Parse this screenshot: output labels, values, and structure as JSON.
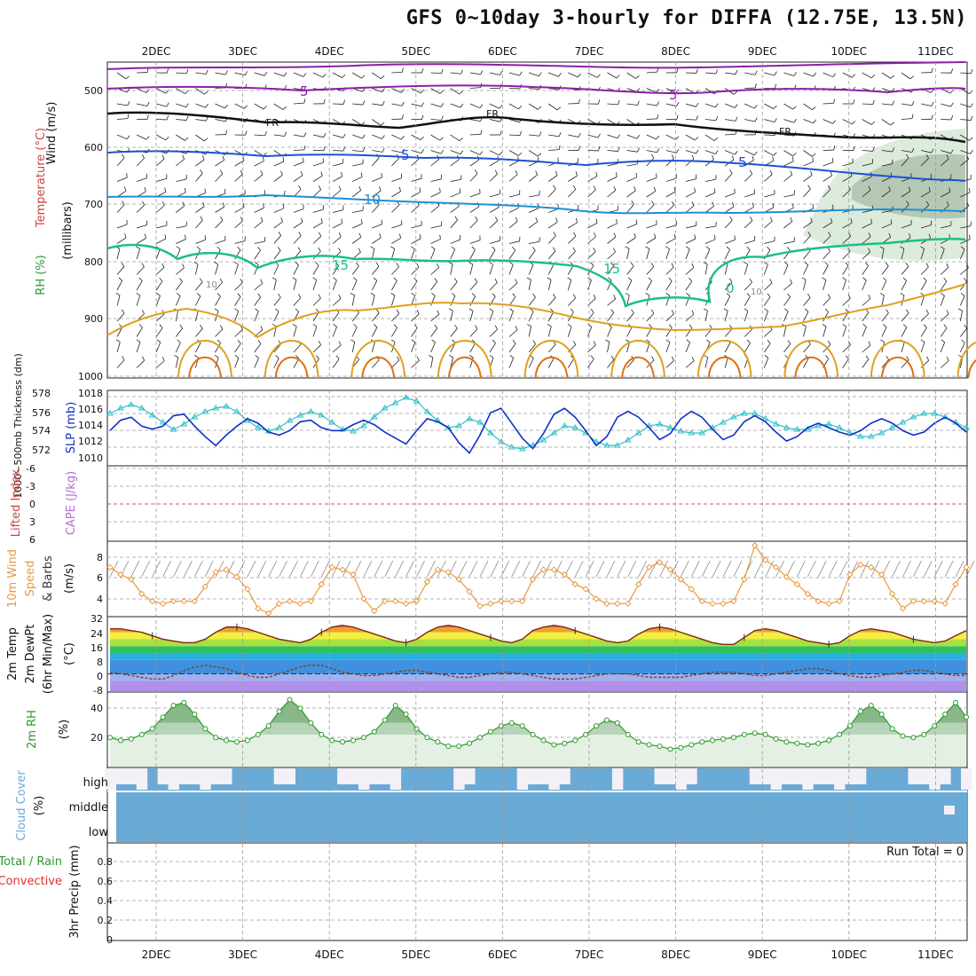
{
  "title": "GFS 0~10day 3-hourly for DIFFA (12.75E, 13.5N)",
  "dates": [
    "2DEC",
    "3DEC",
    "4DEC",
    "5DEC",
    "6DEC",
    "7DEC",
    "8DEC",
    "9DEC",
    "10DEC",
    "11DEC"
  ],
  "colors": {
    "grid": "#9a9a9a",
    "rh_fill": "#c8dcc8",
    "temp_violet": "#8a1fa8",
    "temp_black": "#111111",
    "temp_blue5": "#1f4fd4",
    "temp_blue10": "#1a90d8",
    "temp_green15": "#1bbf8a",
    "temp_orange": "#e0a020",
    "temp_orange_dark": "#e07010",
    "thickness": "#30c0c8",
    "slp": "#1030c8",
    "wind10m": "#e89a40",
    "rh2m": "#2a9a2a",
    "cloud": "#6aaad6",
    "cloud_clear": "#f4f0f8",
    "lifted_zero": "#e05050"
  },
  "panels": {
    "upper": {
      "labels": {
        "wind": "Wind (m/s)",
        "temp": "Temperature (°C)",
        "rh": "RH (%)",
        "mb": "(millibars)"
      },
      "pressure_ticks": [
        "500",
        "600",
        "700",
        "800",
        "900",
        "1000"
      ],
      "contour_labels": {
        "c5": "5",
        "c10": "10",
        "c15": "15",
        "cFR": "FR",
        "c0": "0",
        "cg10": "10"
      }
    },
    "thickness": {
      "labels": {
        "thick": "1000~500mb Thickness (dm)",
        "slp": "SLP (mb)"
      },
      "left_ticks": [
        "578",
        "576",
        "574",
        "572"
      ],
      "right_ticks": [
        "1018",
        "1016",
        "1014",
        "1012",
        "1010"
      ]
    },
    "cape": {
      "labels": {
        "li": "Lifted Index",
        "cape": "CAPE (J/kg)"
      },
      "ticks": [
        "-6",
        "-3",
        "0",
        "3",
        "6"
      ]
    },
    "wind10m": {
      "labels": {
        "l1": "10m Wind",
        "l2": "Speed",
        "l3": "& Barbs",
        "unit": "(m/s)"
      },
      "ticks": [
        "8",
        "6",
        "4"
      ]
    },
    "temp2m": {
      "labels": {
        "l1": "2m Temp",
        "l2": "2m DewPt",
        "l3": "(6hr Min/Max)",
        "unit": "(°C)"
      },
      "ticks": [
        "32",
        "24",
        "16",
        "8",
        "0",
        "-8"
      ]
    },
    "rh2m": {
      "labels": {
        "l1": "2m RH",
        "unit": "(%)"
      },
      "ticks": [
        "40",
        "20"
      ]
    },
    "cloud": {
      "labels": {
        "l1": "Cloud Cover",
        "unit": "(%)"
      },
      "levels": [
        "high",
        "middle",
        "low"
      ]
    },
    "precip": {
      "labels": {
        "l1": "Total / Rain",
        "l2": "Convective",
        "l3": "3hr Precip (mm)"
      },
      "ticks": [
        "0.8",
        "0.6",
        "0.4",
        "0.2",
        "0"
      ],
      "run_total": "Run Total = 0"
    }
  },
  "chart_data": [
    {
      "type": "line",
      "title": "1000~500mb Thickness (dm)",
      "ylim": [
        570,
        578
      ],
      "series": [
        {
          "name": "1000~500mb Thickness (dm)",
          "values": [
            575.8,
            576.4,
            576.8,
            576.4,
            575.6,
            574.8,
            574.0,
            574.6,
            575.4,
            576.0,
            576.4,
            576.6,
            576.0,
            575.0,
            574.2,
            573.8,
            574.2,
            575.0,
            575.6,
            576.0,
            575.6,
            574.8,
            574.0,
            573.8,
            574.4,
            575.4,
            576.4,
            577.0,
            577.6,
            577.2,
            576.0,
            575.0,
            574.2,
            574.4,
            575.2,
            574.8,
            573.6,
            572.6,
            572.0,
            571.8,
            572.2,
            572.8,
            573.6,
            574.4,
            574.2,
            573.6,
            572.6,
            572.2,
            572.2,
            572.8,
            573.6,
            574.4,
            574.6,
            574.2,
            573.8,
            573.6,
            573.6,
            574.2,
            574.8,
            575.4,
            575.8,
            575.8,
            575.2,
            574.6,
            574.2,
            574.0,
            574.0,
            574.4,
            574.6,
            574.2,
            573.6,
            573.2,
            573.2,
            573.6,
            574.2,
            574.8,
            575.4,
            575.8,
            575.8,
            575.4,
            574.8,
            574.2
          ]
        }
      ]
    },
    {
      "type": "line",
      "title": "SLP (mb)",
      "ylim": [
        1009,
        1019
      ],
      "series": [
        {
          "name": "SLP (mb)",
          "values": [
            1013.6,
            1015.0,
            1015.4,
            1014.2,
            1013.8,
            1014.2,
            1015.6,
            1015.8,
            1014.2,
            1012.8,
            1011.6,
            1013.0,
            1014.2,
            1015.2,
            1014.6,
            1013.4,
            1013.0,
            1013.6,
            1014.8,
            1015.0,
            1014.0,
            1013.6,
            1013.6,
            1014.4,
            1015.0,
            1014.4,
            1013.4,
            1012.6,
            1011.8,
            1013.6,
            1015.2,
            1014.8,
            1014.0,
            1012.0,
            1010.6,
            1013.0,
            1016.0,
            1016.6,
            1014.6,
            1012.6,
            1011.2,
            1013.2,
            1015.8,
            1016.6,
            1015.4,
            1013.6,
            1011.6,
            1012.8,
            1015.4,
            1016.2,
            1015.4,
            1014.0,
            1012.4,
            1013.2,
            1015.2,
            1016.2,
            1015.4,
            1013.8,
            1012.4,
            1013.0,
            1014.8,
            1015.6,
            1014.8,
            1013.4,
            1012.2,
            1012.8,
            1014.0,
            1014.6,
            1014.0,
            1013.4,
            1013.0,
            1013.6,
            1014.6,
            1015.2,
            1014.6,
            1013.6,
            1013.0,
            1013.4,
            1014.6,
            1015.4,
            1014.6,
            1013.4
          ]
        }
      ]
    },
    {
      "type": "line",
      "title": "10m Wind Speed (m/s)",
      "ylim": [
        3,
        9
      ],
      "series": [
        {
          "name": "10m Wind Speed",
          "values": [
            7.0,
            6.4,
            6.0,
            4.8,
            4.2,
            4.0,
            4.2,
            4.2,
            4.2,
            5.4,
            6.6,
            6.8,
            6.2,
            5.2,
            3.6,
            3.2,
            4.0,
            4.2,
            4.0,
            4.2,
            5.6,
            7.0,
            6.8,
            6.4,
            4.4,
            3.4,
            4.2,
            4.2,
            4.0,
            4.2,
            5.8,
            6.8,
            6.6,
            6.0,
            5.0,
            3.8,
            4.0,
            4.2,
            4.2,
            4.2,
            6.0,
            6.8,
            6.8,
            6.4,
            5.6,
            5.2,
            4.4,
            4.0,
            4.0,
            4.0,
            5.6,
            7.0,
            7.4,
            6.8,
            6.0,
            5.2,
            4.2,
            4.0,
            4.0,
            4.2,
            6.0,
            8.8,
            7.6,
            7.0,
            6.2,
            5.6,
            4.8,
            4.2,
            4.0,
            4.2,
            6.4,
            7.2,
            7.0,
            6.4,
            4.8,
            3.6,
            4.2,
            4.2,
            4.2,
            4.0,
            5.6,
            7.0
          ]
        }
      ]
    },
    {
      "type": "line",
      "title": "2m Temp (°C)",
      "ylim": [
        -10,
        32
      ],
      "series": [
        {
          "name": "2m Temp",
          "values": [
            26,
            26,
            25,
            24,
            22,
            20,
            19,
            18,
            18,
            20,
            24,
            27,
            27,
            26,
            24,
            22,
            20,
            19,
            18,
            20,
            24,
            27,
            28,
            27,
            25,
            23,
            21,
            19,
            18,
            20,
            24,
            27,
            28,
            27,
            25,
            23,
            21,
            19,
            18,
            20,
            25,
            27,
            28,
            27,
            25,
            23,
            21,
            19,
            18,
            19,
            23,
            26,
            27,
            26,
            24,
            22,
            20,
            18,
            17,
            17,
            21,
            25,
            26,
            25,
            23,
            21,
            19,
            18,
            17,
            18,
            22,
            25,
            26,
            25,
            24,
            22,
            20,
            19,
            18,
            19,
            22,
            25
          ]
        },
        {
          "name": "2m DewPt",
          "values": [
            1,
            0,
            -1,
            -2,
            -3,
            -3,
            -1,
            2,
            4,
            5,
            4,
            3,
            1,
            -1,
            -2,
            -2,
            0,
            2,
            4,
            5,
            5,
            3,
            1,
            0,
            -1,
            -1,
            0,
            1,
            2,
            2,
            1,
            0,
            -1,
            -2,
            -2,
            -1,
            0,
            1,
            1,
            0,
            -1,
            -2,
            -3,
            -3,
            -3,
            -2,
            -1,
            0,
            0,
            0,
            -1,
            -2,
            -2,
            -2,
            -2,
            -1,
            0,
            1,
            1,
            1,
            0,
            -1,
            -1,
            0,
            1,
            2,
            3,
            3,
            2,
            0,
            -1,
            -2,
            -2,
            -1,
            0,
            1,
            2,
            2,
            1,
            0,
            -1,
            -1
          ]
        }
      ]
    },
    {
      "type": "area",
      "title": "2m RH (%)",
      "ylim": [
        0,
        50
      ],
      "series": [
        {
          "name": "2m RH",
          "values": [
            20,
            18,
            19,
            22,
            26,
            34,
            42,
            44,
            36,
            26,
            20,
            18,
            17,
            18,
            22,
            28,
            38,
            46,
            40,
            30,
            22,
            18,
            17,
            18,
            20,
            24,
            32,
            42,
            36,
            26,
            20,
            17,
            14,
            14,
            16,
            20,
            24,
            28,
            30,
            28,
            22,
            18,
            15,
            16,
            18,
            22,
            28,
            32,
            30,
            22,
            17,
            15,
            14,
            12,
            13,
            15,
            17,
            18,
            19,
            20,
            22,
            23,
            22,
            19,
            17,
            16,
            15,
            16,
            18,
            22,
            28,
            38,
            42,
            36,
            26,
            21,
            20,
            22,
            28,
            36,
            44,
            34
          ]
        }
      ]
    }
  ]
}
